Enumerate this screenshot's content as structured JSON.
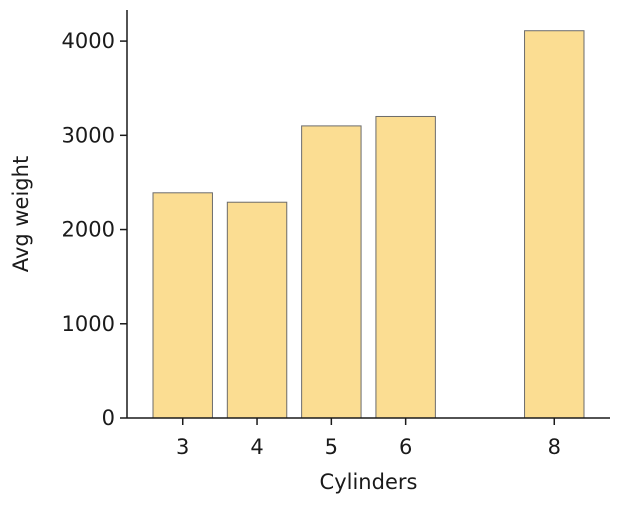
{
  "chart_data": {
    "type": "bar",
    "x": [
      3,
      4,
      5,
      6,
      8
    ],
    "categories": [
      "3",
      "4",
      "5",
      "6",
      "8"
    ],
    "values": [
      2390,
      2290,
      3100,
      3200,
      4110
    ],
    "title": "",
    "xlabel": "Cylinders",
    "ylabel": "Avg weight",
    "xlim": [
      2.25,
      8.75
    ],
    "ylim": [
      0,
      4330
    ],
    "yticks": [
      0,
      1000,
      2000,
      3000,
      4000
    ],
    "bar_color": "#fbdd92",
    "edge_color": "#6b6b6b",
    "grid": false,
    "legend": "none"
  }
}
